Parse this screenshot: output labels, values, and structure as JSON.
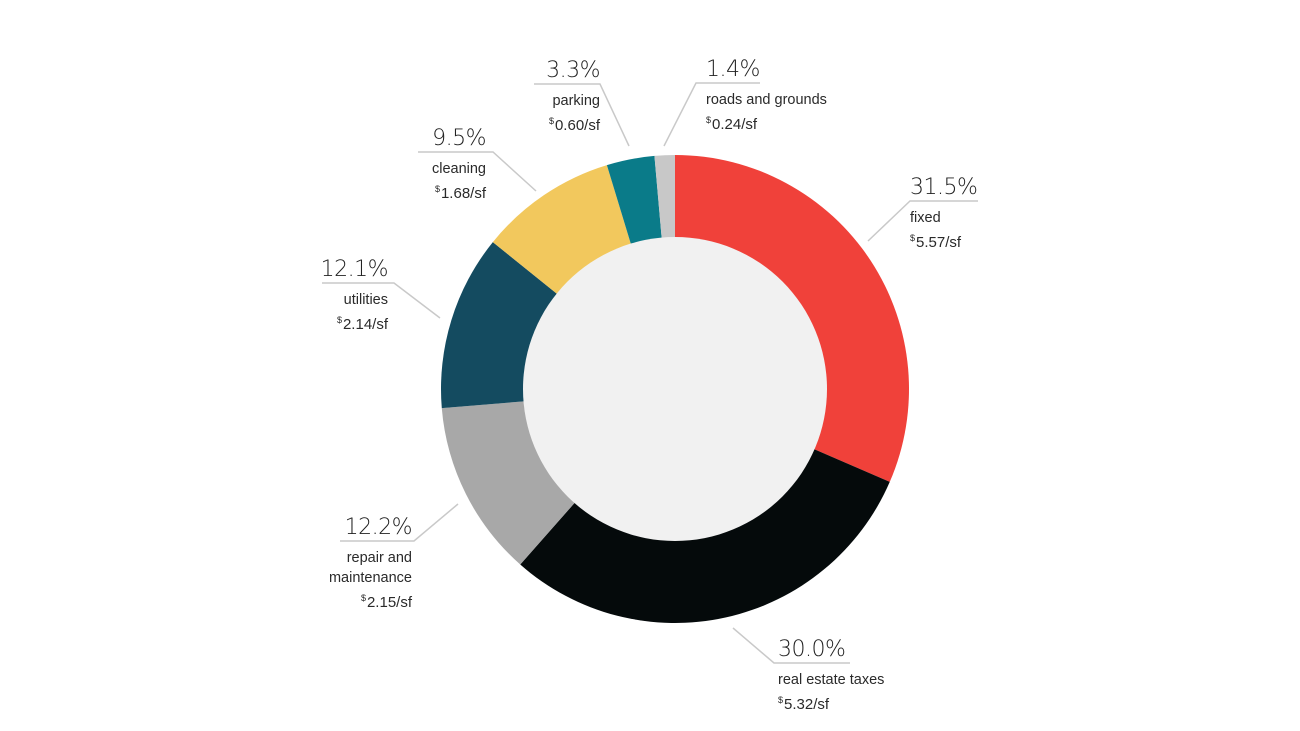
{
  "chart_data": {
    "type": "pie",
    "subtype": "donut",
    "title": "",
    "unit_label": "/sf",
    "currency": "$",
    "start_angle_deg": 0,
    "direction": "clockwise",
    "center_color": "#f1f1f1",
    "slices": [
      {
        "label": "fixed",
        "percent": 31.5,
        "pct_text": "31.5%",
        "value": 5.57,
        "value_text": "5.57/sf",
        "color": "#f0413a"
      },
      {
        "label": "real estate taxes",
        "percent": 30.0,
        "pct_text": "30.0%",
        "value": 5.32,
        "value_text": "5.32/sf",
        "color": "#050a0b"
      },
      {
        "label": "repair and maintenance",
        "percent": 12.2,
        "pct_text": "12.2%",
        "value": 2.15,
        "value_text": "2.15/sf",
        "color": "#a8a8a8"
      },
      {
        "label": "utilities",
        "percent": 12.1,
        "pct_text": "12.1%",
        "value": 2.14,
        "value_text": "2.14/sf",
        "color": "#144b60"
      },
      {
        "label": "cleaning",
        "percent": 9.5,
        "pct_text": "9.5%",
        "value": 1.68,
        "value_text": "1.68/sf",
        "color": "#f2c85d"
      },
      {
        "label": "parking",
        "percent": 3.3,
        "pct_text": "3.3%",
        "value": 0.6,
        "value_text": "0.60/sf",
        "color": "#0a7b89"
      },
      {
        "label": "roads and grounds",
        "percent": 1.4,
        "pct_text": "1.4%",
        "value": 0.24,
        "value_text": "0.24/sf",
        "color": "#c8c8c8"
      }
    ]
  },
  "labels": {
    "fixed": {
      "pct": "31.5%",
      "name": "fixed",
      "currency": "$",
      "val": "5.57/sf"
    },
    "real_estate_taxes": {
      "pct": "30.0%",
      "name": "real estate taxes",
      "currency": "$",
      "val": "5.32/sf"
    },
    "repair": {
      "pct": "12.2%",
      "name_line1": "repair and",
      "name_line2": "maintenance",
      "currency": "$",
      "val": "2.15/sf"
    },
    "utilities": {
      "pct": "12.1%",
      "name": "utilities",
      "currency": "$",
      "val": "2.14/sf"
    },
    "cleaning": {
      "pct": "9.5%",
      "name": "cleaning",
      "currency": "$",
      "val": "1.68/sf"
    },
    "parking": {
      "pct": "3.3%",
      "name": "parking",
      "currency": "$",
      "val": "0.60/sf"
    },
    "roads": {
      "pct": "1.4%",
      "name": "roads and grounds",
      "currency": "$",
      "val": "0.24/sf"
    }
  }
}
